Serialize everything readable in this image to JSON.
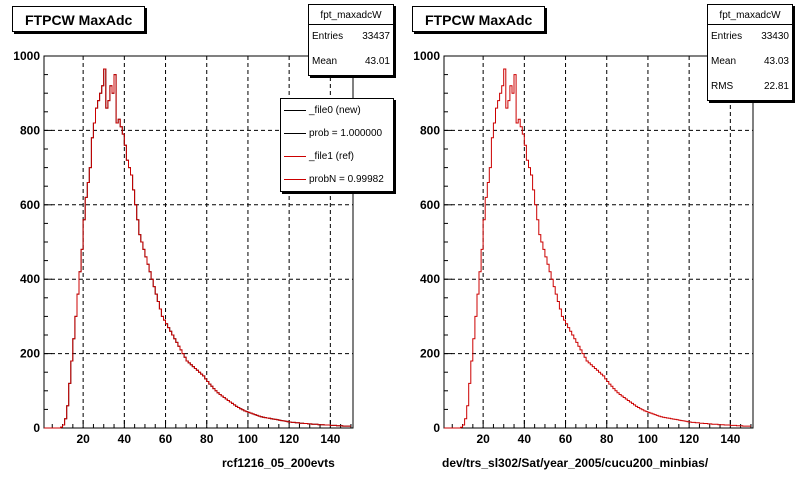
{
  "charts": [
    {
      "title": "FTPCW MaxAdc",
      "stats": {
        "name": "fpt_maxadcW",
        "rows": [
          {
            "label": "Entries",
            "value": "33437"
          },
          {
            "label": "Mean",
            "value": "43.01"
          }
        ]
      },
      "legend": [
        {
          "label": "_file0 (new)",
          "color": "#000000"
        },
        {
          "label": "prob = 1.000000",
          "color": "#000000"
        },
        {
          "label": "_file1 (ref)",
          "color": "#cc0000"
        },
        {
          "label": "probN = 0.99982",
          "color": "#cc0000"
        }
      ],
      "xlabel": "rcf1216_05_200evts"
    },
    {
      "title": "FTPCW MaxAdc",
      "stats": {
        "name": "fpt_maxadcW",
        "rows": [
          {
            "label": "Entries",
            "value": "33430"
          },
          {
            "label": "Mean",
            "value": "43.03"
          },
          {
            "label": "RMS",
            "value": "22.81"
          }
        ]
      },
      "legend": [],
      "xlabel": "dev/trs_sl302/Sat/year_2005/cucu200_minbias/"
    }
  ],
  "colors": {
    "hist": "#cc0000",
    "grid": "#000000"
  },
  "chart_data": [
    {
      "type": "histogram",
      "title": "FTPCW MaxAdc",
      "xlabel": "rcf1216_05_200evts",
      "ylabel": "",
      "xlim": [
        1,
        151
      ],
      "ylim": [
        0,
        1000
      ],
      "xticks": [
        20,
        40,
        60,
        80,
        100,
        120,
        140
      ],
      "yticks": [
        0,
        200,
        400,
        600,
        800,
        1000
      ],
      "grid": true,
      "legend_position": "top-right",
      "bin_width": 1,
      "x_start": 1,
      "series": [
        {
          "name": "_file0 (new)",
          "values": [
            0,
            0,
            0,
            0,
            0,
            0,
            0,
            0,
            2,
            8,
            25,
            60,
            120,
            180,
            240,
            300,
            360,
            420,
            480,
            560,
            620,
            660,
            700,
            780,
            820,
            860,
            880,
            900,
            920,
            965,
            860,
            880,
            920,
            900,
            950,
            820,
            830,
            810,
            790,
            760,
            720,
            700,
            680,
            640,
            600,
            560,
            520,
            500,
            480,
            460,
            440,
            420,
            400,
            380,
            360,
            340,
            320,
            300,
            290,
            280,
            270,
            260,
            250,
            240,
            230,
            220,
            210,
            200,
            190,
            180,
            175,
            170,
            165,
            160,
            155,
            150,
            145,
            140,
            132,
            125,
            118,
            112,
            106,
            100,
            95,
            90,
            86,
            82,
            78,
            74,
            70,
            66,
            62,
            58,
            55,
            52,
            49,
            46,
            44,
            42,
            40,
            38,
            36,
            34,
            32,
            30,
            29,
            28,
            27,
            26,
            25,
            24,
            23,
            22,
            21,
            20,
            19,
            18,
            17,
            16,
            15,
            15,
            14,
            14,
            13,
            13,
            12,
            12,
            11,
            11,
            10,
            10,
            10,
            9,
            9,
            9,
            8,
            8,
            8,
            7,
            7,
            7,
            6,
            6,
            6,
            5,
            5,
            5,
            5
          ]
        },
        {
          "name": "_file1 (ref)",
          "values": [
            0,
            0,
            0,
            0,
            0,
            0,
            0,
            0,
            2,
            8,
            25,
            60,
            120,
            180,
            240,
            300,
            360,
            420,
            480,
            560,
            620,
            660,
            700,
            780,
            820,
            860,
            880,
            900,
            920,
            965,
            860,
            880,
            920,
            900,
            950,
            820,
            830,
            810,
            790,
            760,
            720,
            700,
            680,
            640,
            600,
            560,
            520,
            500,
            480,
            460,
            440,
            420,
            400,
            380,
            360,
            340,
            320,
            300,
            290,
            280,
            270,
            260,
            250,
            240,
            230,
            220,
            210,
            200,
            190,
            180,
            175,
            170,
            165,
            160,
            155,
            150,
            145,
            140,
            132,
            125,
            118,
            112,
            106,
            100,
            95,
            90,
            86,
            82,
            78,
            74,
            70,
            66,
            62,
            58,
            55,
            52,
            49,
            46,
            44,
            42,
            40,
            38,
            36,
            34,
            32,
            30,
            29,
            28,
            27,
            26,
            25,
            24,
            23,
            22,
            21,
            20,
            19,
            18,
            17,
            16,
            15,
            15,
            14,
            14,
            13,
            13,
            12,
            12,
            11,
            11,
            10,
            10,
            10,
            9,
            9,
            9,
            8,
            8,
            8,
            7,
            7,
            7,
            6,
            6,
            6,
            5,
            5,
            5,
            5
          ]
        }
      ]
    },
    {
      "type": "histogram",
      "title": "FTPCW MaxAdc",
      "xlabel": "dev/trs_sl302/Sat/year_2005/cucu200_minbias/",
      "ylabel": "",
      "xlim": [
        1,
        151
      ],
      "ylim": [
        0,
        1000
      ],
      "xticks": [
        20,
        40,
        60,
        80,
        100,
        120,
        140
      ],
      "yticks": [
        0,
        200,
        400,
        600,
        800,
        1000
      ],
      "grid": true,
      "bin_width": 1,
      "x_start": 1,
      "series": [
        {
          "name": "",
          "values": [
            0,
            0,
            0,
            0,
            0,
            0,
            0,
            0,
            2,
            8,
            25,
            60,
            120,
            180,
            240,
            300,
            360,
            420,
            480,
            560,
            620,
            660,
            700,
            780,
            820,
            860,
            880,
            900,
            920,
            965,
            860,
            880,
            920,
            900,
            950,
            820,
            830,
            810,
            790,
            760,
            720,
            700,
            680,
            640,
            600,
            560,
            520,
            500,
            480,
            460,
            440,
            420,
            400,
            380,
            360,
            340,
            320,
            300,
            290,
            280,
            270,
            260,
            250,
            240,
            230,
            220,
            210,
            200,
            190,
            180,
            175,
            170,
            165,
            160,
            155,
            150,
            145,
            140,
            132,
            125,
            118,
            112,
            106,
            100,
            95,
            90,
            86,
            82,
            78,
            74,
            70,
            66,
            62,
            58,
            55,
            52,
            49,
            46,
            44,
            42,
            40,
            38,
            36,
            34,
            32,
            30,
            29,
            28,
            27,
            26,
            25,
            24,
            23,
            22,
            21,
            20,
            19,
            18,
            17,
            16,
            15,
            15,
            14,
            14,
            13,
            13,
            12,
            12,
            11,
            11,
            10,
            10,
            10,
            9,
            9,
            9,
            8,
            8,
            8,
            7,
            7,
            7,
            6,
            6,
            6,
            5,
            5,
            5,
            5
          ]
        }
      ]
    }
  ]
}
